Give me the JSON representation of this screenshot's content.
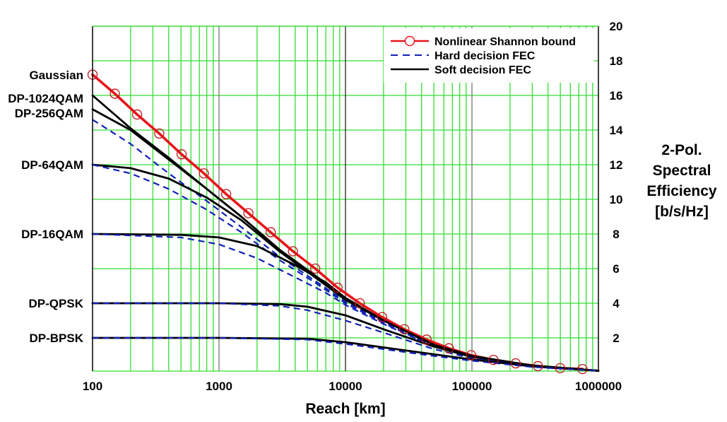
{
  "chart_data": {
    "type": "line",
    "title": "",
    "xlabel": "Reach [km]",
    "ylabel": [
      "2-Pol.",
      "Spectral",
      "Efficiency",
      "[b/s/Hz]"
    ],
    "xscale": "log",
    "xlim": [
      100,
      1000000
    ],
    "ylim": [
      0,
      20
    ],
    "x_ticks": [
      100,
      1000,
      10000,
      100000,
      1000000
    ],
    "x_tick_labels": [
      "100",
      "1000",
      "10000",
      "100000",
      "1000000"
    ],
    "y_ticks": [
      2,
      4,
      6,
      8,
      10,
      12,
      14,
      16,
      18,
      20
    ],
    "y_tick_labels": [
      "2",
      "4",
      "6",
      "8",
      "10",
      "12",
      "14",
      "16",
      "18",
      "20"
    ],
    "y_axis_side": "right",
    "grid": true,
    "grid_color": "#33dd33",
    "legend": {
      "placement": "top-right",
      "entries": [
        {
          "label": "Nonlinear Shannon bound",
          "style": "solid-with-circles",
          "color": "#e8141b"
        },
        {
          "label": "Hard decision FEC",
          "style": "dashed",
          "color": "#1020b8"
        },
        {
          "label": "Soft decision FEC",
          "style": "solid",
          "color": "#000000"
        }
      ]
    },
    "modulation_labels": [
      {
        "label": "Gaussian",
        "y": 17.2
      },
      {
        "label": "DP-1024QAM",
        "y": 16.0
      },
      {
        "label": "DP-256QAM",
        "y": 15.2
      },
      {
        "label": "DP-64QAM",
        "y": 12.0
      },
      {
        "label": "DP-16QAM",
        "y": 8.0
      },
      {
        "label": "DP-QPSK",
        "y": 4.0
      },
      {
        "label": "DP-BPSK",
        "y": 2.0
      }
    ],
    "series": [
      {
        "name": "Nonlinear Shannon bound",
        "kind": "shannon",
        "color": "#e8141b",
        "x": [
          100,
          150,
          225,
          337,
          506,
          759,
          1139,
          1709,
          2563,
          3844,
          5767,
          8650,
          12975,
          19462,
          29193,
          43790,
          65685,
          98528,
          147792,
          221688,
          332532,
          498798,
          748197
        ],
        "y": [
          17.2,
          16.1,
          14.9,
          13.8,
          12.6,
          11.5,
          10.3,
          9.2,
          8.1,
          7.0,
          6.0,
          4.9,
          4.0,
          3.2,
          2.5,
          1.9,
          1.4,
          1.0,
          0.73,
          0.53,
          0.37,
          0.25,
          0.2
        ]
      },
      {
        "name": "Soft decision FEC - DP-1024QAM",
        "kind": "soft",
        "color": "#000000",
        "x": [
          100,
          200,
          400,
          800,
          1500,
          3000,
          6000,
          10000,
          20000,
          50000,
          100000,
          300000,
          1000000
        ],
        "y": [
          16.0,
          14.1,
          12.4,
          10.6,
          9.0,
          7.1,
          5.5,
          4.3,
          3.0,
          1.6,
          0.95,
          0.4,
          0.1
        ]
      },
      {
        "name": "Soft decision FEC - DP-256QAM",
        "kind": "soft",
        "color": "#000000",
        "x": [
          100,
          200,
          400,
          800,
          1500,
          3000,
          6000,
          10000,
          20000,
          50000,
          100000,
          300000,
          1000000
        ],
        "y": [
          15.2,
          14.0,
          12.3,
          10.6,
          9.0,
          7.1,
          5.5,
          4.3,
          3.0,
          1.6,
          0.95,
          0.4,
          0.1
        ]
      },
      {
        "name": "Hard decision FEC - DP-1024QAM",
        "kind": "hard",
        "color": "#1020b8",
        "x": [
          100,
          200,
          400,
          800,
          1500,
          3000,
          6000,
          10000,
          20000,
          50000,
          100000,
          300000,
          1000000
        ],
        "y": [
          14.6,
          13.2,
          11.5,
          9.9,
          8.4,
          6.7,
          5.2,
          4.1,
          2.9,
          1.55,
          0.9,
          0.38,
          0.1
        ]
      },
      {
        "name": "Soft decision FEC - DP-64QAM",
        "kind": "soft",
        "color": "#000000",
        "x": [
          100,
          200,
          400,
          800,
          1500,
          3000,
          6000,
          10000,
          20000,
          50000,
          100000,
          300000,
          1000000
        ],
        "y": [
          12.0,
          11.8,
          11.2,
          10.1,
          8.8,
          7.0,
          5.4,
          4.2,
          3.0,
          1.6,
          0.95,
          0.4,
          0.1
        ]
      },
      {
        "name": "Hard decision FEC - DP-64QAM",
        "kind": "hard",
        "color": "#1020b8",
        "x": [
          100,
          200,
          400,
          800,
          1500,
          3000,
          6000,
          10000,
          20000,
          50000,
          100000,
          300000,
          1000000
        ],
        "y": [
          12.0,
          11.5,
          10.6,
          9.4,
          8.1,
          6.5,
          5.1,
          4.0,
          2.85,
          1.5,
          0.9,
          0.38,
          0.1
        ]
      },
      {
        "name": "Soft decision FEC - DP-16QAM",
        "kind": "soft",
        "color": "#000000",
        "x": [
          100,
          500,
          1000,
          2000,
          4000,
          7000,
          10000,
          20000,
          50000,
          100000,
          300000,
          1000000
        ],
        "y": [
          8.0,
          7.95,
          7.8,
          7.3,
          6.2,
          5.2,
          4.3,
          3.0,
          1.6,
          0.95,
          0.4,
          0.1
        ]
      },
      {
        "name": "Hard decision FEC - DP-16QAM",
        "kind": "hard",
        "color": "#1020b8",
        "x": [
          100,
          500,
          1000,
          2000,
          4000,
          7000,
          10000,
          20000,
          50000,
          100000,
          300000,
          1000000
        ],
        "y": [
          8.0,
          7.8,
          7.4,
          6.6,
          5.5,
          4.6,
          3.9,
          2.8,
          1.5,
          0.88,
          0.38,
          0.1
        ]
      },
      {
        "name": "Soft decision FEC - DP-QPSK",
        "kind": "soft",
        "color": "#000000",
        "x": [
          100,
          1000,
          3000,
          5000,
          10000,
          20000,
          50000,
          100000,
          300000,
          1000000
        ],
        "y": [
          4.0,
          4.0,
          3.95,
          3.8,
          3.3,
          2.5,
          1.5,
          0.9,
          0.4,
          0.1
        ]
      },
      {
        "name": "Hard decision FEC - DP-QPSK",
        "kind": "hard",
        "color": "#1020b8",
        "x": [
          100,
          1000,
          3000,
          5000,
          10000,
          20000,
          50000,
          100000,
          300000,
          1000000
        ],
        "y": [
          4.0,
          4.0,
          3.85,
          3.6,
          3.0,
          2.3,
          1.35,
          0.82,
          0.36,
          0.1
        ]
      },
      {
        "name": "Soft decision FEC - DP-BPSK",
        "kind": "soft",
        "color": "#000000",
        "x": [
          100,
          1000,
          5000,
          10000,
          20000,
          50000,
          100000,
          300000,
          1000000
        ],
        "y": [
          2.0,
          2.0,
          1.95,
          1.75,
          1.45,
          1.05,
          0.75,
          0.35,
          0.1
        ]
      },
      {
        "name": "Hard decision FEC - DP-BPSK",
        "kind": "hard",
        "color": "#1020b8",
        "x": [
          100,
          1000,
          5000,
          10000,
          20000,
          50000,
          100000,
          300000,
          1000000
        ],
        "y": [
          2.0,
          2.0,
          1.9,
          1.65,
          1.35,
          0.95,
          0.68,
          0.32,
          0.1
        ]
      }
    ]
  }
}
